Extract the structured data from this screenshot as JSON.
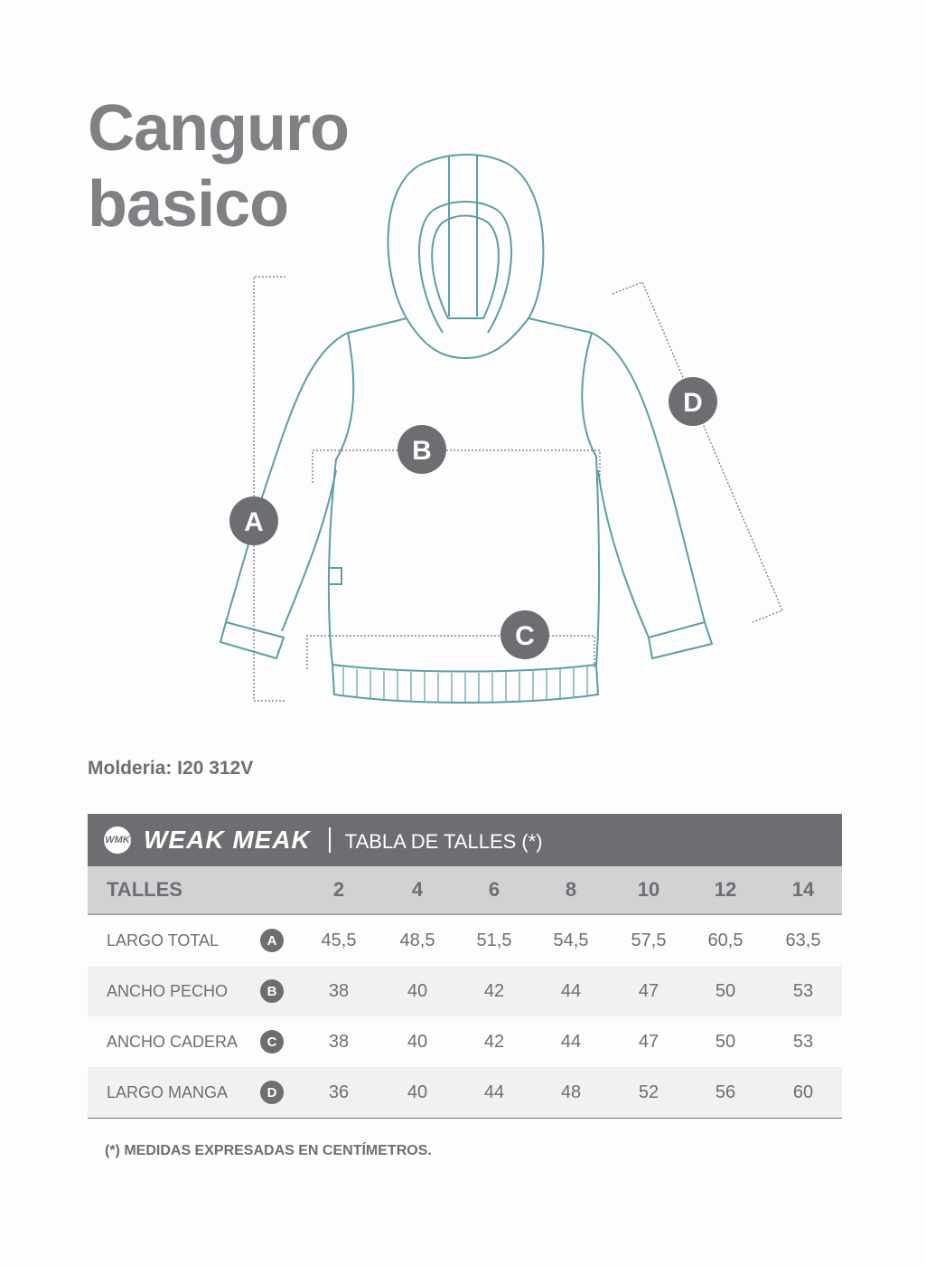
{
  "title": {
    "line1": "Canguro",
    "line2": "basico"
  },
  "diagram": {
    "labels": [
      "A",
      "B",
      "C",
      "D"
    ],
    "line_color": "#5a9ea6",
    "badge_color": "#6d6e71"
  },
  "molderia": "Molderia: I20 312V",
  "table": {
    "brand": "WEAK MEAK",
    "logo_text": "WMK",
    "title": "TABLA DE TALLES (*)",
    "size_header": "TALLES",
    "sizes": [
      "2",
      "4",
      "6",
      "8",
      "10",
      "12",
      "14"
    ],
    "rows": [
      {
        "label": "LARGO TOTAL",
        "badge": "A",
        "values": [
          "45,5",
          "48,5",
          "51,5",
          "54,5",
          "57,5",
          "60,5",
          "63,5"
        ]
      },
      {
        "label": "ANCHO PECHO",
        "badge": "B",
        "values": [
          "38",
          "40",
          "42",
          "44",
          "47",
          "50",
          "53"
        ]
      },
      {
        "label": "ANCHO CADERA",
        "badge": "C",
        "values": [
          "38",
          "40",
          "42",
          "44",
          "47",
          "50",
          "53"
        ]
      },
      {
        "label": "LARGO MANGA",
        "badge": "D",
        "values": [
          "36",
          "40",
          "44",
          "48",
          "52",
          "56",
          "60"
        ]
      }
    ]
  },
  "footnote": "(*) MEDIDAS EXPRESADAS EN CENTÍMETROS."
}
